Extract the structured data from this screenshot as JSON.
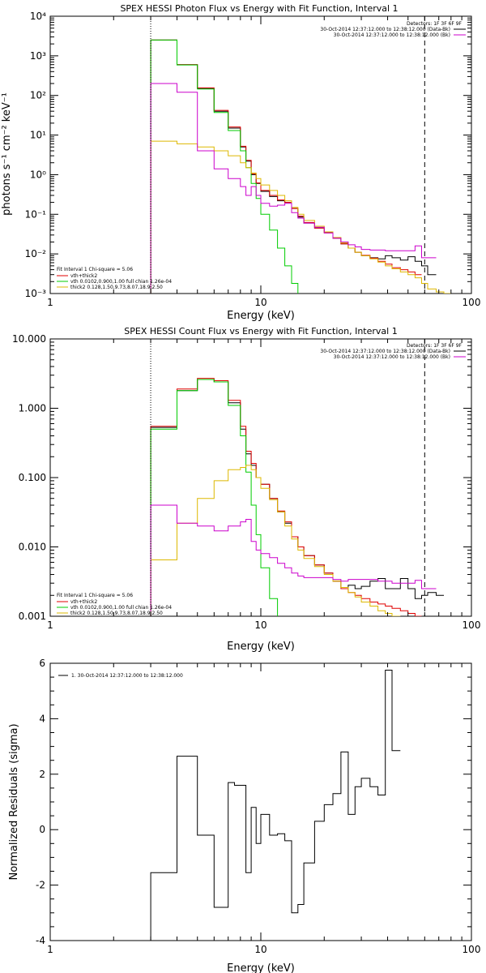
{
  "chart_data": [
    {
      "type": "line",
      "title": "SPEX HESSI Photon Flux vs Energy with Fit Function, Interval 1",
      "xlabel": "Energy (keV)",
      "ylabel": "photons s⁻¹ cm⁻² keV⁻¹",
      "xscale": "log",
      "yscale": "log",
      "xlim": [
        1,
        100
      ],
      "ylim": [
        0.001,
        10000
      ],
      "x_tick_labels": [
        "1",
        "10",
        "100"
      ],
      "y_tick_labels": [
        "10⁻³",
        "10⁻²",
        "10⁻¹",
        "10⁰",
        "10¹",
        "10²",
        "10³",
        "10⁴"
      ],
      "detectors": "Detectors: 1F 3F 6F 9F",
      "legend_top_right": [
        {
          "label": "30-Oct-2014 12:37:12.000 to 12:38:12.000 (Data-Bk)",
          "color": "#000000"
        },
        {
          "label": "30-Oct-2014 12:37:12.000 to 12:38:12.000 (Bk)",
          "color": "#cc00cc"
        }
      ],
      "fit_header": "Fit Interval 1   Chi-square = 5.06",
      "legend_bottom_left": [
        {
          "label": "vth+thick2",
          "color": "#e00000"
        },
        {
          "label": "vth 0.0102,0.900,1.00  full chian 1.26e-04",
          "color": "#00cc00"
        },
        {
          "label": "thick2 0.128,1.50,9.73,8.07,18.9,2.50",
          "color": "#ddb800"
        }
      ],
      "vlines": [
        {
          "x": 3.0,
          "style": "dotted"
        },
        {
          "x": 60.0,
          "style": "dashed"
        }
      ],
      "x_edges": [
        3.0,
        3.5,
        4.0,
        4.5,
        5.0,
        5.5,
        6.0,
        6.5,
        7.0,
        7.5,
        8.0,
        8.5,
        9.0,
        9.5,
        10.0,
        11.0,
        12.0,
        13.0,
        14.0,
        15.0,
        16.0,
        18.0,
        20.0,
        22.0,
        24.0,
        26.0,
        28.0,
        30.0,
        33.0,
        36.0,
        39.0,
        42.0,
        46.0,
        50.0,
        54.0,
        58.0,
        62.0,
        68.0,
        74.0,
        80.0
      ],
      "series": [
        {
          "name": "Data-Bk",
          "color": "#000000",
          "values": [
            2500,
            2500,
            600,
            600,
            150,
            150,
            40,
            40,
            15,
            15,
            5,
            2.2,
            1.0,
            0.6,
            0.38,
            0.28,
            0.22,
            0.2,
            0.14,
            0.085,
            0.06,
            0.045,
            0.035,
            0.025,
            0.018,
            0.014,
            0.011,
            0.009,
            0.008,
            0.0075,
            0.009,
            0.008,
            0.007,
            0.0085,
            0.0065,
            0.005,
            0.003,
            null,
            null
          ]
        },
        {
          "name": "vth+thick2",
          "color": "#e00000",
          "values": [
            2500,
            2500,
            600,
            600,
            155,
            155,
            42,
            42,
            16,
            16,
            5.2,
            2.3,
            1.05,
            0.62,
            0.4,
            0.3,
            0.23,
            0.2,
            0.14,
            0.09,
            0.062,
            0.045,
            0.034,
            0.025,
            0.018,
            0.014,
            0.011,
            0.0092,
            0.0078,
            0.0065,
            0.0055,
            0.0045,
            0.004,
            0.0035,
            0.003,
            null,
            null,
            null,
            null
          ]
        },
        {
          "name": "vth",
          "color": "#00cc00",
          "values": [
            2500,
            2500,
            590,
            590,
            145,
            145,
            37,
            37,
            13,
            13,
            4.0,
            1.5,
            0.6,
            0.25,
            0.1,
            0.04,
            0.014,
            0.005,
            0.0018,
            0.0006,
            null,
            null,
            null,
            null,
            null,
            null,
            null,
            null,
            null,
            null,
            null,
            null,
            null,
            null,
            null,
            null,
            null,
            null,
            null
          ]
        },
        {
          "name": "thick2",
          "color": "#ddb800",
          "values": [
            7,
            7,
            6,
            6,
            5,
            5,
            4,
            4,
            3,
            3,
            2,
            1.5,
            1.1,
            0.8,
            0.55,
            0.4,
            0.3,
            0.22,
            0.15,
            0.1,
            0.07,
            0.05,
            0.036,
            0.026,
            0.019,
            0.014,
            0.011,
            0.009,
            0.0075,
            0.0062,
            0.005,
            0.0042,
            0.0035,
            0.003,
            0.0025,
            0.0018,
            0.0013,
            0.0011,
            0.001
          ]
        },
        {
          "name": "Bk",
          "color": "#cc00cc",
          "values": [
            200,
            200,
            120,
            120,
            4,
            4,
            1.4,
            1.4,
            0.8,
            0.8,
            0.5,
            0.3,
            0.5,
            0.3,
            0.19,
            0.16,
            0.17,
            0.19,
            0.11,
            0.08,
            0.06,
            0.047,
            0.034,
            0.025,
            0.02,
            0.017,
            0.015,
            0.013,
            0.0125,
            0.0125,
            0.012,
            0.012,
            0.012,
            0.012,
            0.016,
            0.008,
            0.008,
            null,
            null
          ]
        }
      ]
    },
    {
      "type": "line",
      "title": "SPEX HESSI Count Flux vs Energy with Fit Function, Interval 1",
      "xlabel": "Energy (keV)",
      "ylabel": "",
      "xscale": "log",
      "yscale": "log",
      "xlim": [
        1,
        100
      ],
      "ylim": [
        0.001,
        10
      ],
      "x_tick_labels": [
        "1",
        "10",
        "100"
      ],
      "y_tick_labels": [
        "0.001",
        "0.010",
        "0.100",
        "1.000",
        "10.000"
      ],
      "detectors": "Detectors: 1F 3F 6F 9F",
      "legend_top_right": [
        {
          "label": "30-Oct-2014 12:37:12.000 to 12:38:12.000 (Data-Bk)",
          "color": "#000000"
        },
        {
          "label": "30-Oct-2014 12:37:12.000 to 12:38:12.000 (Bk)",
          "color": "#cc00cc"
        }
      ],
      "fit_header": "Fit Interval 1   Chi-square = 5.06",
      "legend_bottom_left": [
        {
          "label": "vth+thick2",
          "color": "#e00000"
        },
        {
          "label": "vth 0.0102,0.900,1.00  full chian 1.26e-04",
          "color": "#00cc00"
        },
        {
          "label": "thick2 0.128,1.50,9.73,8.07,18.9,2.50",
          "color": "#ddb800"
        }
      ],
      "vlines": [
        {
          "x": 3.0,
          "style": "dotted"
        },
        {
          "x": 60.0,
          "style": "dashed"
        }
      ],
      "x_edges": [
        3.0,
        3.5,
        4.0,
        4.5,
        5.0,
        5.5,
        6.0,
        6.5,
        7.0,
        7.5,
        8.0,
        8.5,
        9.0,
        9.5,
        10.0,
        11.0,
        12.0,
        13.0,
        14.0,
        15.0,
        16.0,
        18.0,
        20.0,
        22.0,
        24.0,
        26.0,
        28.0,
        30.0,
        33.0,
        36.0,
        39.0,
        42.0,
        46.0,
        50.0,
        54.0,
        58.0,
        62.0,
        68.0,
        74.0,
        80.0
      ],
      "series": [
        {
          "name": "Data-Bk",
          "color": "#000000",
          "values": [
            0.53,
            0.53,
            1.8,
            1.8,
            2.6,
            2.6,
            2.4,
            2.4,
            1.2,
            1.2,
            0.5,
            0.22,
            0.15,
            0.1,
            0.08,
            0.05,
            0.032,
            0.022,
            0.014,
            0.01,
            0.0075,
            0.0055,
            0.0042,
            0.0032,
            0.0026,
            0.0028,
            0.0025,
            0.0027,
            0.0032,
            0.0035,
            0.0025,
            0.0025,
            0.0035,
            0.0025,
            0.0018,
            0.002,
            0.0022,
            0.002,
            null
          ]
        },
        {
          "name": "vth+thick2",
          "color": "#e00000",
          "values": [
            0.55,
            0.55,
            1.9,
            1.9,
            2.7,
            2.7,
            2.5,
            2.5,
            1.3,
            1.3,
            0.55,
            0.24,
            0.16,
            0.1,
            0.08,
            0.05,
            0.033,
            0.023,
            0.014,
            0.01,
            0.0075,
            0.0055,
            0.0042,
            0.0032,
            0.0025,
            0.0022,
            0.002,
            0.0018,
            0.0016,
            0.0015,
            0.0014,
            0.0013,
            0.0012,
            0.0011,
            0.001,
            null,
            null,
            null,
            null
          ]
        },
        {
          "name": "vth",
          "color": "#00cc00",
          "values": [
            0.5,
            0.5,
            1.8,
            1.8,
            2.6,
            2.6,
            2.4,
            2.4,
            1.1,
            1.1,
            0.4,
            0.12,
            0.04,
            0.015,
            0.005,
            0.0018,
            0.0006,
            null,
            null,
            null,
            null,
            null,
            null,
            null,
            null,
            null,
            null,
            null,
            null,
            null,
            null,
            null,
            null,
            null,
            null,
            null,
            null,
            null,
            null
          ]
        },
        {
          "name": "thick2",
          "color": "#ddb800",
          "values": [
            0.0065,
            0.0065,
            0.022,
            0.022,
            0.05,
            0.05,
            0.09,
            0.09,
            0.13,
            0.13,
            0.14,
            0.15,
            0.13,
            0.1,
            0.07,
            0.048,
            0.032,
            0.02,
            0.013,
            0.009,
            0.0068,
            0.0052,
            0.004,
            0.0032,
            0.0026,
            0.0022,
            0.0019,
            0.0016,
            0.0014,
            0.0012,
            0.0011,
            0.001,
            null,
            null,
            null,
            null,
            null,
            null,
            null
          ]
        },
        {
          "name": "Bk",
          "color": "#cc00cc",
          "values": [
            0.04,
            0.04,
            0.022,
            0.022,
            0.02,
            0.02,
            0.017,
            0.017,
            0.02,
            0.02,
            0.023,
            0.025,
            0.012,
            0.009,
            0.008,
            0.007,
            0.0058,
            0.005,
            0.0042,
            0.0038,
            0.0036,
            0.0036,
            0.0036,
            0.0034,
            0.0032,
            0.0034,
            0.0034,
            0.0034,
            0.0034,
            0.0032,
            0.0032,
            0.003,
            0.003,
            0.003,
            0.0033,
            0.0025,
            0.0025,
            null,
            null
          ]
        }
      ]
    },
    {
      "type": "line",
      "title": "",
      "xlabel": "Energy (keV)",
      "ylabel": "Normalized Residuals (sigma)",
      "xscale": "log",
      "yscale": "linear",
      "xlim": [
        1,
        100
      ],
      "ylim": [
        -4,
        6
      ],
      "x_tick_labels": [
        "1",
        "10",
        "100"
      ],
      "y_tick_labels": [
        "-4",
        "-2",
        "0",
        "2",
        "4",
        "6"
      ],
      "legend_top_left": [
        {
          "label": "1. 30-Oct-2014 12:37:12.000 to 12:38:12.000",
          "color": "#000000"
        }
      ],
      "x_edges": [
        3.0,
        3.5,
        4.0,
        4.5,
        5.0,
        5.5,
        6.0,
        6.5,
        7.0,
        7.5,
        8.0,
        8.5,
        9.0,
        9.5,
        10.0,
        11.0,
        12.0,
        13.0,
        14.0,
        15.0,
        16.0,
        18.0,
        20.0,
        22.0,
        24.0,
        26.0,
        28.0,
        30.0,
        33.0,
        36.0,
        39.0,
        42.0,
        46.0,
        50.0,
        54.0,
        58.0,
        62.0
      ],
      "series": [
        {
          "name": "residuals",
          "color": "#000000",
          "values": [
            -1.55,
            -1.55,
            2.65,
            2.65,
            -0.2,
            -0.2,
            -2.8,
            -2.8,
            1.7,
            1.6,
            1.6,
            -1.55,
            0.8,
            -0.5,
            0.55,
            -0.2,
            -0.15,
            -0.4,
            -3.0,
            -2.7,
            -1.2,
            0.3,
            0.9,
            1.3,
            2.8,
            0.55,
            1.55,
            1.85,
            1.55,
            1.25,
            5.75,
            2.85,
            null,
            null,
            null,
            null
          ]
        }
      ]
    }
  ]
}
